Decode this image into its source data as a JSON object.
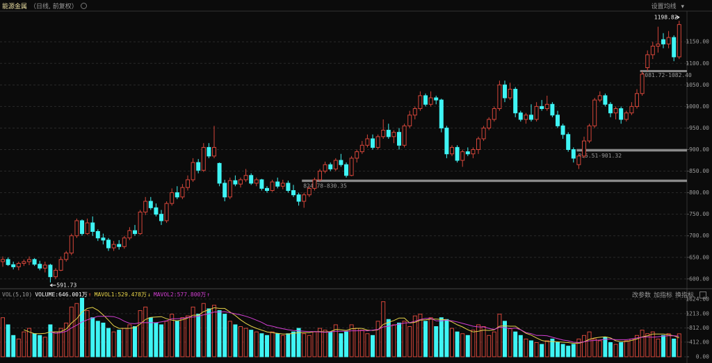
{
  "chart_data": [
    {
      "type": "candlestick",
      "title": "能源金属",
      "subtitle": "（日线, 前复权）",
      "menu": "设置均线",
      "up_color": "#d6463a",
      "down_color": "#3ff4f4",
      "grid": true,
      "ylim": [
        582,
        1218
      ],
      "yticks": [
        {
          "value": 600,
          "label": "600.00"
        },
        {
          "value": 650,
          "label": "650.00"
        },
        {
          "value": 700,
          "label": "700.00"
        },
        {
          "value": 750,
          "label": "750.00"
        },
        {
          "value": 800,
          "label": "800.00"
        },
        {
          "value": 850,
          "label": "850.00"
        },
        {
          "value": 900,
          "label": "900.00"
        },
        {
          "value": 950,
          "label": "950.00"
        },
        {
          "value": 1000,
          "label": "1000.00"
        },
        {
          "value": 1050,
          "label": "1050.00"
        },
        {
          "value": 1100,
          "label": "1100.00"
        },
        {
          "value": 1150,
          "label": "1150.00"
        }
      ],
      "gaps": [
        {
          "label": "824.78-830.35",
          "low": 824.78,
          "high": 830.35
        },
        {
          "label": "895.51-901.32",
          "low": 895.51,
          "high": 901.32
        },
        {
          "label": "1081.72-1082.40",
          "low": 1081.72,
          "high": 1082.4
        }
      ],
      "ohlc": [
        [
          640,
          652,
          628,
          645
        ],
        [
          645,
          650,
          630,
          633
        ],
        [
          633,
          640,
          622,
          628
        ],
        [
          628,
          640,
          620,
          636
        ],
        [
          636,
          645,
          630,
          640
        ],
        [
          640,
          652,
          632,
          645
        ],
        [
          645,
          648,
          630,
          634
        ],
        [
          634,
          642,
          620,
          625
        ],
        [
          625,
          640,
          615,
          632
        ],
        [
          632,
          635,
          591.73,
          605
        ],
        [
          605,
          625,
          600,
          620
        ],
        [
          620,
          652,
          618,
          645
        ],
        [
          645,
          665,
          640,
          660
        ],
        [
          660,
          705,
          655,
          700
        ],
        [
          700,
          740,
          695,
          735
        ],
        [
          735,
          738,
          700,
          705
        ],
        [
          705,
          740,
          702,
          730
        ],
        [
          730,
          745,
          700,
          710
        ],
        [
          710,
          715,
          688,
          695
        ],
        [
          695,
          705,
          680,
          690
        ],
        [
          690,
          695,
          665,
          672
        ],
        [
          672,
          688,
          665,
          680
        ],
        [
          680,
          690,
          668,
          675
        ],
        [
          675,
          700,
          670,
          695
        ],
        [
          695,
          720,
          690,
          712
        ],
        [
          712,
          725,
          700,
          705
        ],
        [
          705,
          760,
          702,
          755
        ],
        [
          755,
          790,
          748,
          780
        ],
        [
          780,
          790,
          760,
          765
        ],
        [
          765,
          775,
          745,
          750
        ],
        [
          750,
          760,
          725,
          735
        ],
        [
          735,
          780,
          730,
          775
        ],
        [
          775,
          810,
          770,
          800
        ],
        [
          800,
          815,
          785,
          790
        ],
        [
          790,
          820,
          785,
          812
        ],
        [
          812,
          840,
          805,
          830
        ],
        [
          830,
          880,
          825,
          870
        ],
        [
          870,
          878,
          845,
          852
        ],
        [
          852,
          915,
          848,
          905
        ],
        [
          905,
          915,
          880,
          885
        ],
        [
          885,
          955,
          880,
          905
        ],
        [
          868,
          870,
          815,
          822
        ],
        [
          822,
          830,
          780,
          790
        ],
        [
          790,
          835,
          785,
          828
        ],
        [
          828,
          840,
          815,
          820
        ],
        [
          820,
          835,
          812,
          830
        ],
        [
          830,
          855,
          825,
          840
        ],
        [
          840,
          845,
          818,
          822
        ],
        [
          822,
          835,
          815,
          830
        ],
        [
          830,
          832,
          805,
          810
        ],
        [
          810,
          815,
          800,
          805
        ],
        [
          805,
          830,
          802,
          825
        ],
        [
          825,
          835,
          810,
          815
        ],
        [
          815,
          830,
          808,
          822
        ],
        [
          822,
          828,
          800,
          805
        ],
        [
          805,
          818,
          790,
          795
        ],
        [
          795,
          800,
          770,
          780
        ],
        [
          780,
          800,
          765,
          795
        ],
        [
          795,
          815,
          790,
          810
        ],
        [
          810,
          835,
          805,
          830
        ],
        [
          830,
          855,
          826,
          850
        ],
        [
          850,
          872,
          845,
          865
        ],
        [
          865,
          870,
          850,
          855
        ],
        [
          855,
          880,
          850,
          875
        ],
        [
          875,
          890,
          860,
          865
        ],
        [
          865,
          870,
          835,
          840
        ],
        [
          840,
          885,
          838,
          880
        ],
        [
          880,
          900,
          870,
          895
        ],
        [
          895,
          920,
          890,
          910
        ],
        [
          910,
          935,
          905,
          925
        ],
        [
          925,
          935,
          900,
          905
        ],
        [
          905,
          935,
          900,
          930
        ],
        [
          930,
          970,
          925,
          945
        ],
        [
          945,
          960,
          925,
          930
        ],
        [
          930,
          945,
          915,
          940
        ],
        [
          940,
          950,
          900,
          910
        ],
        [
          910,
          960,
          905,
          955
        ],
        [
          955,
          990,
          950,
          980
        ],
        [
          980,
          1000,
          970,
          995
        ],
        [
          995,
          1035,
          990,
          1025
        ],
        [
          1025,
          1030,
          1000,
          1005
        ],
        [
          1005,
          1035,
          1000,
          1020
        ],
        [
          1020,
          1025,
          1005,
          1015
        ],
        [
          1015,
          1018,
          940,
          950
        ],
        [
          950,
          955,
          880,
          890
        ],
        [
          890,
          910,
          885,
          905
        ],
        [
          905,
          910,
          870,
          875
        ],
        [
          875,
          900,
          860,
          895
        ],
        [
          895,
          905,
          885,
          890
        ],
        [
          890,
          905,
          880,
          900
        ],
        [
          900,
          930,
          890,
          925
        ],
        [
          925,
          955,
          920,
          950
        ],
        [
          950,
          975,
          945,
          970
        ],
        [
          970,
          1000,
          965,
          995
        ],
        [
          995,
          1060,
          990,
          1050
        ],
        [
          1050,
          1060,
          1010,
          1020
        ],
        [
          1020,
          1055,
          1015,
          1040
        ],
        [
          1040,
          1045,
          975,
          985
        ],
        [
          985,
          990,
          965,
          970
        ],
        [
          970,
          985,
          960,
          980
        ],
        [
          980,
          1005,
          965,
          970
        ],
        [
          970,
          1010,
          965,
          1000
        ],
        [
          1000,
          1015,
          990,
          995
        ],
        [
          995,
          1025,
          990,
          1005
        ],
        [
          1005,
          1010,
          975,
          980
        ],
        [
          980,
          990,
          950,
          955
        ],
        [
          955,
          960,
          925,
          935
        ],
        [
          935,
          940,
          895,
          900
        ],
        [
          900,
          905,
          870,
          880
        ],
        [
          865,
          890,
          855,
          885
        ],
        [
          885,
          930,
          880,
          920
        ],
        [
          920,
          960,
          915,
          955
        ],
        [
          955,
          1020,
          950,
          1015
        ],
        [
          1015,
          1035,
          1010,
          1025
        ],
        [
          1025,
          1030,
          1000,
          1005
        ],
        [
          1005,
          1010,
          975,
          985
        ],
        [
          985,
          1000,
          970,
          995
        ],
        [
          995,
          1000,
          960,
          970
        ],
        [
          970,
          990,
          965,
          985
        ],
        [
          985,
          1010,
          980,
          1000
        ],
        [
          1000,
          1040,
          995,
          1030
        ],
        [
          1030,
          1081.72,
          1025,
          1075
        ],
        [
          1090,
          1130,
          1082.4,
          1120
        ],
        [
          1120,
          1150,
          1110,
          1140
        ],
        [
          1140,
          1185,
          1125,
          1145
        ],
        [
          1155,
          1170,
          1135,
          1145
        ],
        [
          1145,
          1175,
          1135,
          1160
        ],
        [
          1160,
          1165,
          1105,
          1115
        ],
        [
          1115,
          1198.82,
          1110,
          1190
        ]
      ]
    },
    {
      "type": "volume",
      "title": "VOL(5,10)",
      "buttons": [
        "改参数",
        "加指标",
        "换指标"
      ],
      "grid": true,
      "ylim": [
        0,
        1700
      ],
      "yticks": [
        {
          "value": 0,
          "label": "0.00"
        },
        {
          "value": 412,
          "label": "412.00"
        },
        {
          "value": 812,
          "label": "812.00"
        },
        {
          "value": 1213,
          "label": "1213.00"
        },
        {
          "value": 1624,
          "label": "1624.00"
        }
      ],
      "series": [
        {
          "name": "VOLUME:646.001万",
          "color": "#ffffff",
          "values": [
            1100,
            900,
            600,
            500,
            700,
            800,
            650,
            600,
            550,
            900,
            700,
            800,
            950,
            1400,
            1500,
            1650,
            1300,
            1100,
            1000,
            950,
            800,
            700,
            750,
            800,
            900,
            850,
            1300,
            1400,
            1100,
            950,
            900,
            1000,
            1200,
            1000,
            1100,
            1150,
            1400,
            1200,
            1500,
            1350,
            1450,
            1300,
            1200,
            1000,
            900,
            850,
            800,
            750,
            700,
            650,
            600,
            700,
            650,
            600,
            650,
            700,
            800,
            650,
            600,
            700,
            800,
            750,
            700,
            900,
            650,
            700,
            900,
            800,
            750,
            650,
            600,
            1000,
            1550,
            1050,
            900,
            950,
            1000,
            850,
            1150,
            1200,
            1000,
            1100,
            850,
            1100,
            1050,
            800,
            700,
            650,
            600,
            750,
            900,
            850,
            600,
            700,
            1200,
            1000,
            800,
            700,
            600,
            500,
            450,
            400,
            350,
            450,
            500,
            400,
            350,
            300,
            350,
            500,
            600,
            700,
            500,
            450,
            550,
            400,
            350,
            400,
            450,
            500,
            600,
            750,
            650,
            700,
            500,
            600,
            650,
            500,
            646.001
          ]
        },
        {
          "name": "MAVOL1:529.478万",
          "color": "#e8d44a",
          "values": [
            null,
            null,
            null,
            null,
            760,
            700,
            650,
            650,
            660,
            700,
            700,
            710,
            780,
            950,
            1070,
            1260,
            1360,
            1390,
            1310,
            1180,
            1030,
            870,
            800,
            800,
            800,
            820,
            920,
            1050,
            1110,
            1120,
            1130,
            1070,
            1030,
            1010,
            1040,
            1090,
            1170,
            1170,
            1270,
            1320,
            1380,
            1360,
            1360,
            1260,
            1160,
            1040,
            940,
            860,
            800,
            750,
            700,
            680,
            660,
            640,
            640,
            660,
            680,
            680,
            680,
            710,
            710,
            700,
            710,
            770,
            760,
            740,
            790,
            800,
            800,
            750,
            740,
            760,
            910,
            970,
            1020,
            1090,
            1090,
            950,
            970,
            1030,
            1040,
            1060,
            1060,
            1050,
            1040,
            980,
            900,
            840,
            760,
            700,
            720,
            750,
            740,
            760,
            860,
            870,
            860,
            860,
            760,
            660,
            610,
            530,
            460,
            430,
            430,
            420,
            410,
            400,
            380,
            380,
            420,
            490,
            530,
            550,
            560,
            530,
            450,
            430,
            430,
            460,
            500,
            560,
            590,
            640,
            640,
            640,
            620,
            590,
            529.478
          ]
        },
        {
          "name": "MAVOL2:577.800万",
          "color": "#d43fd4",
          "values": [
            null,
            null,
            null,
            null,
            null,
            null,
            null,
            null,
            null,
            700,
            660,
            680,
            715,
            810,
            890,
            980,
            1040,
            1090,
            1140,
            1140,
            1140,
            1130,
            1080,
            1000,
            940,
            930,
            960,
            960,
            960,
            960,
            980,
            1010,
            1070,
            1070,
            1080,
            1110,
            1120,
            1140,
            1180,
            1210,
            1260,
            1260,
            1270,
            1240,
            1210,
            1180,
            1140,
            1090,
            1030,
            970,
            890,
            860,
            820,
            790,
            760,
            740,
            730,
            720,
            710,
            710,
            700,
            690,
            700,
            720,
            720,
            720,
            730,
            730,
            740,
            730,
            750,
            770,
            840,
            860,
            890,
            920,
            950,
            960,
            1000,
            1050,
            1080,
            1080,
            1010,
            1010,
            1030,
            1010,
            980,
            940,
            900,
            860,
            840,
            840,
            800,
            770,
            830,
            820,
            790,
            810,
            760,
            680,
            650,
            600,
            600,
            590,
            550,
            510,
            470,
            450,
            410,
            400,
            420,
            450,
            460,
            470,
            490,
            500,
            480,
            480,
            480,
            500,
            530,
            550,
            560,
            550,
            560,
            580,
            590,
            590,
            577.8
          ]
        }
      ]
    }
  ]
}
